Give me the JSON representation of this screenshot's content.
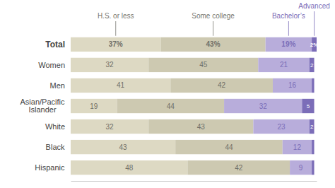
{
  "chart_data": {
    "type": "bar",
    "orientation": "horizontal",
    "stacked": true,
    "data_labels": true,
    "tick_labels": false,
    "grid": false,
    "categories": [
      "Total",
      "Women",
      "Men",
      "Asian/Pacific\nIslander",
      "White",
      "Black",
      "Hispanic"
    ],
    "xlim": [
      0,
      101
    ],
    "series": [
      {
        "name": "H.S. or less",
        "color": "#ddd9c3",
        "values": [
          37,
          32,
          41,
          19,
          32,
          43,
          48
        ],
        "value_labels": [
          "37%",
          "32",
          "41",
          "19",
          "32",
          "43",
          "48"
        ]
      },
      {
        "name": "Some college",
        "color": "#cdc9b1",
        "values": [
          43,
          45,
          42,
          44,
          43,
          44,
          42
        ],
        "value_labels": [
          "43%",
          "45",
          "42",
          "44",
          "43",
          "44",
          "42"
        ]
      },
      {
        "name": "Bachelor’s",
        "color": "#b8addb",
        "values": [
          19,
          21,
          16,
          32,
          23,
          12,
          9
        ],
        "value_labels": [
          "19%",
          "21",
          "16",
          "32",
          "23",
          "12",
          "9"
        ]
      },
      {
        "name": "Advanced",
        "color": "#7b6db8",
        "values": [
          2,
          2,
          1,
          5,
          2,
          1,
          1
        ],
        "value_labels": [
          "2%",
          "2",
          null,
          "5",
          "2",
          null,
          null
        ]
      }
    ]
  }
}
